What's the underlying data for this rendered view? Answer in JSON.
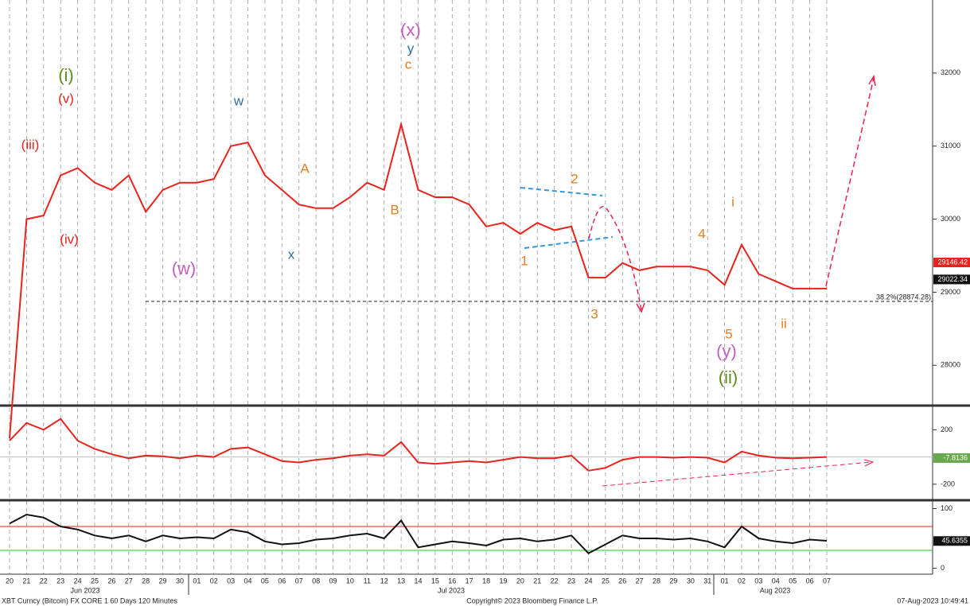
{
  "chart_data": [
    {
      "type": "line",
      "color": "#e8231c",
      "values": [
        27000,
        30000,
        30050,
        30600,
        30700,
        30500,
        30400,
        30600,
        30100,
        30400,
        30500,
        30500,
        30550,
        31000,
        31050,
        30600,
        30400,
        30200,
        30150,
        30150,
        30300,
        30500,
        30400,
        31300,
        30400,
        30300,
        30300,
        30200,
        29900,
        29950,
        29800,
        29950,
        29850,
        29900,
        29200,
        29200,
        29400,
        29300,
        29350,
        29350,
        29350,
        29300,
        29100,
        29650,
        29250,
        29150,
        29050,
        29050,
        29050
      ],
      "ylim": [
        27470,
        33000
      ],
      "yticks": [
        28000,
        29000,
        30000,
        31000,
        32000
      ],
      "fib": {
        "label": "38.2%(28874.28)",
        "value": 28874.28
      },
      "last_labels": [
        {
          "value": 29146.42,
          "color": "#e8231c"
        },
        {
          "value": 29022.34,
          "color": "#111111"
        }
      ],
      "annotations": [
        {
          "text": "(iii)",
          "color": "#e8231c"
        },
        {
          "text": "(v)",
          "color": "#e8231c"
        },
        {
          "text": "(i)",
          "color": "#5a8c1a"
        },
        {
          "text": "(iv)",
          "color": "#e8231c"
        },
        {
          "text": "(w)",
          "color": "#c060c0"
        },
        {
          "text": "w",
          "color": "#2b6e9e"
        },
        {
          "text": "x",
          "color": "#2b6e9e"
        },
        {
          "text": "A",
          "color": "#e87c1e"
        },
        {
          "text": "B",
          "color": "#e87c1e"
        },
        {
          "text": "(x)",
          "color": "#c060c0"
        },
        {
          "text": "y",
          "color": "#2b6e9e"
        },
        {
          "text": "c",
          "color": "#e87c1e"
        },
        {
          "text": "1",
          "color": "#e87c1e"
        },
        {
          "text": "2",
          "color": "#e87c1e"
        },
        {
          "text": "3",
          "color": "#e87c1e"
        },
        {
          "text": "4",
          "color": "#e87c1e"
        },
        {
          "text": "5",
          "color": "#e87c1e"
        },
        {
          "text": "(y)",
          "color": "#c060c0"
        },
        {
          "text": "(ii)",
          "color": "#5a8c1a"
        },
        {
          "text": "i",
          "color": "#e87c1e"
        },
        {
          "text": "ii",
          "color": "#e87c1e"
        }
      ]
    },
    {
      "type": "line",
      "color": "#e8231c",
      "values": [
        120,
        250,
        200,
        280,
        120,
        60,
        20,
        -10,
        10,
        5,
        -10,
        10,
        0,
        60,
        70,
        20,
        -30,
        -40,
        -20,
        -10,
        10,
        20,
        10,
        110,
        -40,
        -50,
        -40,
        -30,
        -40,
        -20,
        0,
        -10,
        -10,
        10,
        -100,
        -80,
        -20,
        0,
        0,
        -5,
        0,
        -5,
        -40,
        40,
        10,
        -5,
        -10,
        -5,
        0
      ],
      "ylim": [
        -300,
        360
      ],
      "yticks": [
        -200,
        200
      ],
      "last_labels": [
        {
          "value": -7.8136,
          "color": "#6aa84f"
        }
      ]
    },
    {
      "type": "line",
      "color": "#111111",
      "values": [
        75,
        90,
        85,
        70,
        65,
        55,
        50,
        55,
        45,
        55,
        50,
        52,
        50,
        65,
        60,
        45,
        40,
        42,
        48,
        50,
        55,
        58,
        50,
        80,
        35,
        40,
        45,
        42,
        38,
        48,
        50,
        45,
        48,
        55,
        25,
        40,
        55,
        50,
        50,
        48,
        50,
        45,
        35,
        70,
        50,
        45,
        42,
        48,
        46
      ],
      "ylim": [
        -10,
        110
      ],
      "yticks": [
        0,
        100
      ],
      "levels": [
        {
          "value": 70,
          "color": "#e8231c"
        },
        {
          "value": 30,
          "color": "#22c422"
        }
      ],
      "last_labels": [
        {
          "value": 45.6355,
          "color": "#111111"
        }
      ],
      "categories": [
        "20",
        "21",
        "22",
        "23",
        "24",
        "25",
        "26",
        "27",
        "28",
        "29",
        "30",
        "01",
        "02",
        "03",
        "04",
        "05",
        "06",
        "07",
        "08",
        "09",
        "10",
        "11",
        "12",
        "13",
        "14",
        "15",
        "16",
        "17",
        "18",
        "19",
        "20",
        "21",
        "22",
        "23",
        "24",
        "25",
        "26",
        "27",
        "28",
        "29",
        "30",
        "31",
        "01",
        "02",
        "03",
        "04",
        "05",
        "06",
        "07"
      ],
      "months": [
        "Jun 2023",
        "Jul 2023",
        "Aug 2023"
      ]
    }
  ],
  "footer": {
    "left": "XBT Curncy (Bitcoin) FX CORE 1 60 Days 120 Minutes",
    "center": "Copyright© 2023 Bloomberg Finance L.P.",
    "right": "07-Aug-2023 10:49:41"
  }
}
